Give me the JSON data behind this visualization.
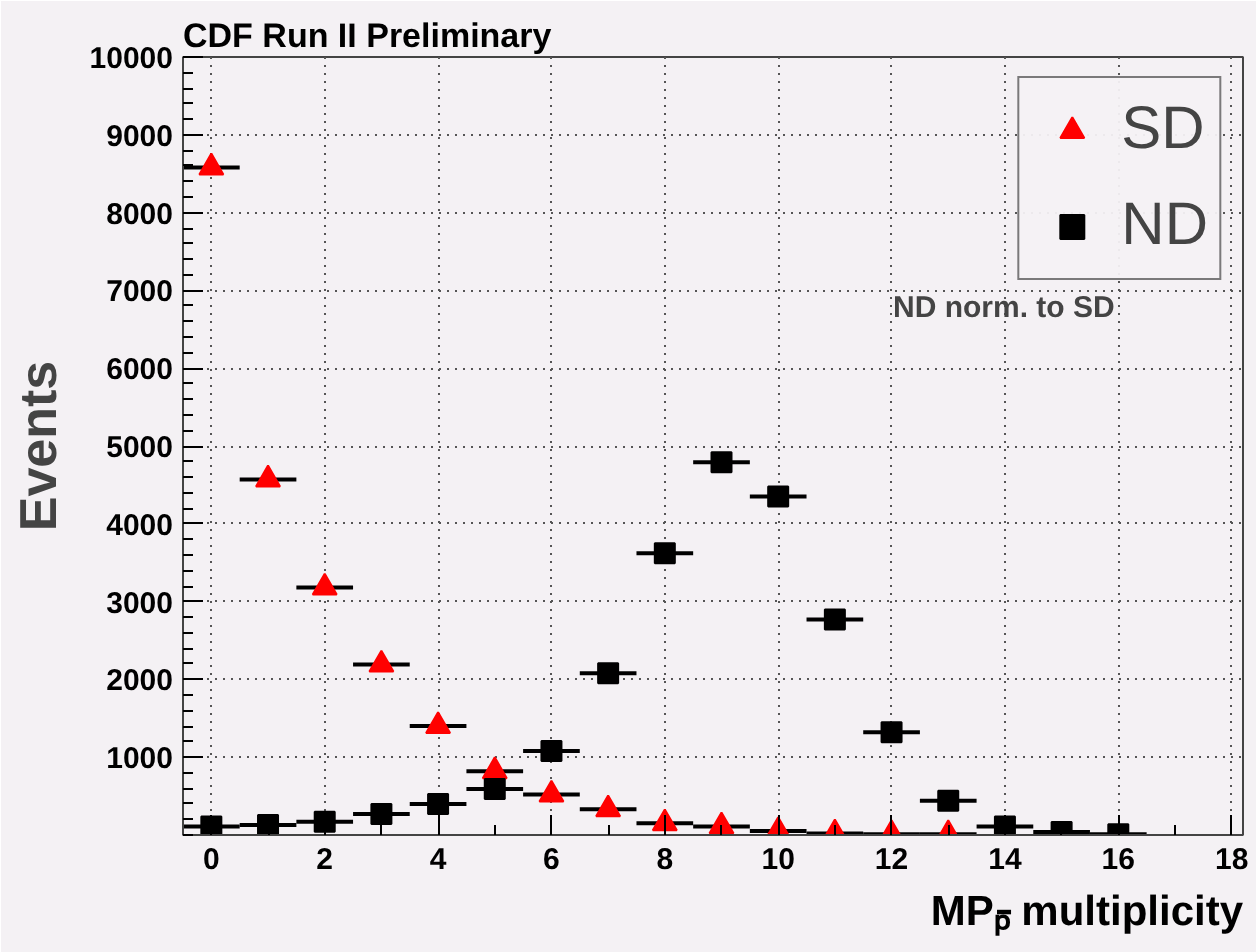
{
  "chart_data": {
    "type": "scatter",
    "title": "CDF Run II Preliminary",
    "xlabel": "MPₚ̄ multiplicity",
    "ylabel": "Events",
    "annotations": [
      "ND norm. to SD"
    ],
    "series": [
      {
        "name": "SD",
        "color": "#ff0000",
        "marker": "triangle",
        "x": [
          0,
          1,
          2,
          3,
          4,
          5,
          6,
          7,
          8,
          9,
          10,
          11,
          12,
          13
        ],
        "values": [
          8580,
          4570,
          3180,
          2190,
          1400,
          820,
          520,
          330,
          150,
          110,
          50,
          20,
          10,
          10
        ],
        "xerrors": [
          0.5,
          0.5,
          0.5,
          0.5,
          0.5,
          0.5,
          0.5,
          0.5,
          0.5,
          0.5,
          0.5,
          0.5,
          0.5,
          0.5
        ]
      },
      {
        "name": "ND",
        "color": "#000000",
        "marker": "square",
        "x": [
          0,
          1,
          2,
          3,
          4,
          5,
          6,
          7,
          8,
          9,
          10,
          11,
          12,
          13,
          14,
          15,
          16
        ],
        "values": [
          110,
          130,
          170,
          270,
          400,
          590,
          1080,
          2080,
          3620,
          4790,
          4350,
          2770,
          1320,
          440,
          110,
          40,
          10
        ],
        "xerrors": [
          0.5,
          0.5,
          0.5,
          0.5,
          0.5,
          0.5,
          0.5,
          0.5,
          0.5,
          0.5,
          0.5,
          0.5,
          0.5,
          0.5,
          0.5,
          0.5,
          0.5
        ]
      }
    ],
    "xlim": [
      -0.5,
      18.2
    ],
    "ylim": [
      0,
      10000
    ],
    "xticks": [
      0,
      2,
      4,
      6,
      8,
      10,
      12,
      14,
      16,
      18
    ],
    "yticks": [
      1000,
      2000,
      3000,
      4000,
      5000,
      6000,
      7000,
      8000,
      9000,
      10000
    ],
    "grid": true,
    "legend": "top right"
  }
}
